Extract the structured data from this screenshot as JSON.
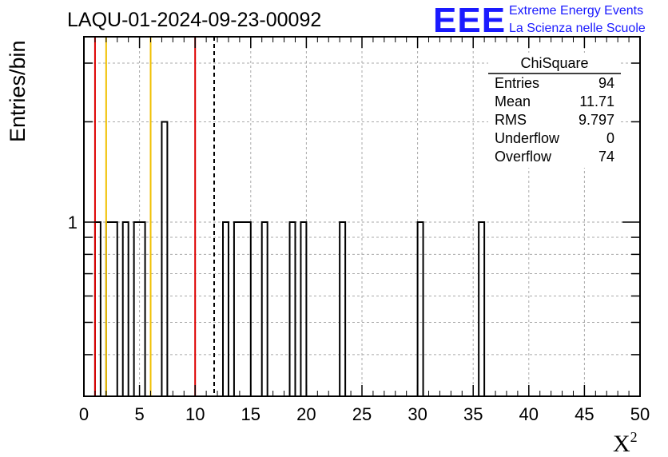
{
  "title": "LAQU-01-2024-09-23-00092",
  "branding": {
    "logo_text": "EEE",
    "line1": "Extreme Energy Events",
    "line2": "La Scienza nelle Scuole",
    "color": "#1a1aff"
  },
  "stats": {
    "name": "ChiSquare",
    "rows": [
      {
        "label": "Entries",
        "value": "94"
      },
      {
        "label": "Mean",
        "value": "11.71"
      },
      {
        "label": "RMS",
        "value": "9.797"
      },
      {
        "label": "Underflow",
        "value": "0"
      },
      {
        "label": "Overflow",
        "value": "74"
      }
    ]
  },
  "chart_data": {
    "type": "bar",
    "title": "LAQU-01-2024-09-23-00092",
    "xlabel": "X",
    "xlabel_superscript": "2",
    "ylabel": "Entries/bin",
    "xlim": [
      0,
      50
    ],
    "ylim": [
      0.3,
      3.6
    ],
    "log_y": true,
    "grid": true,
    "x_ticks": [
      "0",
      "5",
      "10",
      "15",
      "20",
      "25",
      "30",
      "35",
      "40",
      "45",
      "50"
    ],
    "y_tick_labels": [
      {
        "value": 1,
        "label": "1"
      }
    ],
    "bin_width": 0.5,
    "bins": [
      {
        "x0": 1.0,
        "x1": 1.5,
        "count": 1
      },
      {
        "x0": 2.0,
        "x1": 3.0,
        "count": 1
      },
      {
        "x0": 3.5,
        "x1": 4.0,
        "count": 1
      },
      {
        "x0": 4.5,
        "x1": 5.5,
        "count": 1
      },
      {
        "x0": 7.0,
        "x1": 7.5,
        "count": 2
      },
      {
        "x0": 12.5,
        "x1": 13.0,
        "count": 1
      },
      {
        "x0": 13.5,
        "x1": 15.0,
        "count": 1
      },
      {
        "x0": 16.0,
        "x1": 16.5,
        "count": 1
      },
      {
        "x0": 18.5,
        "x1": 19.0,
        "count": 1
      },
      {
        "x0": 19.5,
        "x1": 20.0,
        "count": 1
      },
      {
        "x0": 23.0,
        "x1": 23.5,
        "count": 1
      },
      {
        "x0": 30.0,
        "x1": 30.5,
        "count": 1
      },
      {
        "x0": 35.5,
        "x1": 36.0,
        "count": 1
      }
    ],
    "vertical_lines": [
      {
        "x": 1.0,
        "color": "#dd0000",
        "style": "solid"
      },
      {
        "x": 2.0,
        "color": "#f0c000",
        "style": "solid"
      },
      {
        "x": 6.0,
        "color": "#f0c000",
        "style": "solid"
      },
      {
        "x": 10.0,
        "color": "#dd0000",
        "style": "solid"
      },
      {
        "x": 11.71,
        "color": "#000000",
        "style": "dashed"
      }
    ]
  }
}
